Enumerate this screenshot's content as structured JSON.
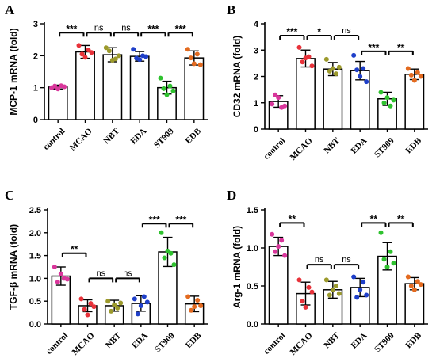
{
  "chart_data": [
    {
      "type": "bar",
      "panel_label": "A",
      "categories": [
        "control",
        "MCAO",
        "NBT",
        "EDA",
        "ST909",
        "EDB"
      ],
      "ylabel": "MCP-1 mRNA (fold)",
      "ylim": [
        0,
        3
      ],
      "yticks": [
        0,
        1,
        2,
        3
      ],
      "ytick_labels": [
        "0",
        "1",
        "2",
        "3"
      ],
      "means": [
        1.02,
        2.12,
        2.03,
        1.98,
        1.0,
        1.93
      ],
      "errors": [
        0.06,
        0.2,
        0.22,
        0.15,
        0.2,
        0.22
      ],
      "points": [
        [
          1.0,
          1.05,
          0.96,
          1.06,
          1.03
        ],
        [
          2.32,
          2.05,
          1.95,
          2.18,
          2.1
        ],
        [
          2.25,
          2.15,
          1.86,
          1.9,
          2.0
        ],
        [
          2.2,
          1.92,
          1.88,
          2.0,
          1.97
        ],
        [
          1.3,
          0.97,
          0.78,
          1.05,
          0.9
        ],
        [
          2.2,
          1.93,
          1.75,
          2.05,
          1.72
        ]
      ],
      "point_colors": [
        "#d9369b",
        "#e8323a",
        "#9c9a2c",
        "#1f3fc9",
        "#2fc22f",
        "#e36a1f"
      ],
      "comparisons": [
        {
          "from": 0,
          "to": 1,
          "label": "***",
          "y": 2.72
        },
        {
          "from": 1,
          "to": 2,
          "label": "ns",
          "y": 2.72
        },
        {
          "from": 2,
          "to": 3,
          "label": "ns",
          "y": 2.72
        },
        {
          "from": 3,
          "to": 4,
          "label": "***",
          "y": 2.72
        },
        {
          "from": 4,
          "to": 5,
          "label": "***",
          "y": 2.72
        }
      ]
    },
    {
      "type": "bar",
      "panel_label": "B",
      "categories": [
        "control",
        "MCAO",
        "NBT",
        "EDA",
        "ST909",
        "EDB"
      ],
      "ylabel": "CD32 mRNA (fold)",
      "ylim": [
        0,
        4
      ],
      "yticks": [
        0,
        1,
        2,
        3,
        4
      ],
      "ytick_labels": [
        "0",
        "1",
        "2",
        "3",
        "4"
      ],
      "means": [
        1.05,
        2.68,
        2.28,
        2.22,
        1.15,
        2.08
      ],
      "errors": [
        0.22,
        0.32,
        0.25,
        0.35,
        0.25,
        0.2
      ],
      "points": [
        [
          0.95,
          1.3,
          1.2,
          0.82,
          0.88
        ],
        [
          3.1,
          2.55,
          2.7,
          2.75,
          2.4
        ],
        [
          2.65,
          2.2,
          2.3,
          2.1,
          2.35
        ],
        [
          2.8,
          2.25,
          2.0,
          2.3,
          1.8
        ],
        [
          1.4,
          1.0,
          1.2,
          0.88,
          1.1
        ],
        [
          2.3,
          2.05,
          1.85,
          2.15,
          2.0
        ]
      ],
      "point_colors": [
        "#d9369b",
        "#e8323a",
        "#9c9a2c",
        "#1f3fc9",
        "#2fc22f",
        "#e36a1f"
      ],
      "comparisons": [
        {
          "from": 0,
          "to": 1,
          "label": "***",
          "y": 3.55
        },
        {
          "from": 1,
          "to": 2,
          "label": "*",
          "y": 3.55
        },
        {
          "from": 2,
          "to": 3,
          "label": "ns",
          "y": 3.55
        },
        {
          "from": 3,
          "to": 4,
          "label": "***",
          "y": 2.95
        },
        {
          "from": 4,
          "to": 5,
          "label": "**",
          "y": 2.95
        }
      ]
    },
    {
      "type": "bar",
      "panel_label": "C",
      "categories": [
        "control",
        "MCAO",
        "NBT",
        "EDA",
        "ST909",
        "EDB"
      ],
      "ylabel": "TGF-β mRNA (fold)",
      "ylim": [
        0,
        2.5
      ],
      "yticks": [
        0,
        0.5,
        1,
        1.5,
        2,
        2.5
      ],
      "ytick_labels": [
        "0.0",
        "0.5",
        "1.0",
        "1.5",
        "2.0",
        "2.5"
      ],
      "means": [
        1.05,
        0.4,
        0.4,
        0.45,
        1.58,
        0.44
      ],
      "errors": [
        0.2,
        0.13,
        0.12,
        0.17,
        0.32,
        0.17
      ],
      "points": [
        [
          1.25,
          0.92,
          1.1,
          1.0,
          0.98
        ],
        [
          0.55,
          0.32,
          0.2,
          0.45,
          0.38
        ],
        [
          0.5,
          0.28,
          0.42,
          0.35,
          0.46
        ],
        [
          0.55,
          0.22,
          0.4,
          0.6,
          0.48
        ],
        [
          2.0,
          1.45,
          1.6,
          1.55,
          1.3
        ],
        [
          0.6,
          0.3,
          0.38,
          0.52,
          0.4
        ]
      ],
      "point_colors": [
        "#d9369b",
        "#e8323a",
        "#9c9a2c",
        "#1f3fc9",
        "#2fc22f",
        "#e36a1f"
      ],
      "comparisons": [
        {
          "from": 0,
          "to": 1,
          "label": "**",
          "y": 1.55
        },
        {
          "from": 1,
          "to": 2,
          "label": "ns",
          "y": 1.0
        },
        {
          "from": 2,
          "to": 3,
          "label": "ns",
          "y": 1.0
        },
        {
          "from": 3,
          "to": 4,
          "label": "***",
          "y": 2.2
        },
        {
          "from": 4,
          "to": 5,
          "label": "***",
          "y": 2.2
        }
      ]
    },
    {
      "type": "bar",
      "panel_label": "D",
      "categories": [
        "control",
        "MCAO",
        "NBT",
        "EDA",
        "ST909",
        "EDB"
      ],
      "ylabel": "Arg-1 mRNA (fold)",
      "ylim": [
        0,
        1.5
      ],
      "yticks": [
        0,
        0.5,
        1,
        1.5
      ],
      "ytick_labels": [
        "0.0",
        "0.5",
        "1.0",
        "1.5"
      ],
      "means": [
        1.02,
        0.4,
        0.45,
        0.48,
        0.89,
        0.53
      ],
      "errors": [
        0.12,
        0.15,
        0.11,
        0.12,
        0.18,
        0.08
      ],
      "points": [
        [
          1.18,
          0.95,
          1.02,
          1.1,
          0.9
        ],
        [
          0.58,
          0.3,
          0.22,
          0.48,
          0.42
        ],
        [
          0.58,
          0.38,
          0.45,
          0.5,
          0.4
        ],
        [
          0.62,
          0.35,
          0.45,
          0.55,
          0.38
        ],
        [
          1.2,
          0.85,
          0.75,
          0.95,
          0.8
        ],
        [
          0.62,
          0.5,
          0.45,
          0.56,
          0.52
        ]
      ],
      "point_colors": [
        "#d9369b",
        "#e8323a",
        "#9c9a2c",
        "#1f3fc9",
        "#2fc22f",
        "#e36a1f"
      ],
      "comparisons": [
        {
          "from": 0,
          "to": 1,
          "label": "**",
          "y": 1.33
        },
        {
          "from": 1,
          "to": 2,
          "label": "ns",
          "y": 0.78
        },
        {
          "from": 2,
          "to": 3,
          "label": "ns",
          "y": 0.78
        },
        {
          "from": 3,
          "to": 4,
          "label": "**",
          "y": 1.33
        },
        {
          "from": 4,
          "to": 5,
          "label": "**",
          "y": 1.33
        }
      ]
    }
  ]
}
